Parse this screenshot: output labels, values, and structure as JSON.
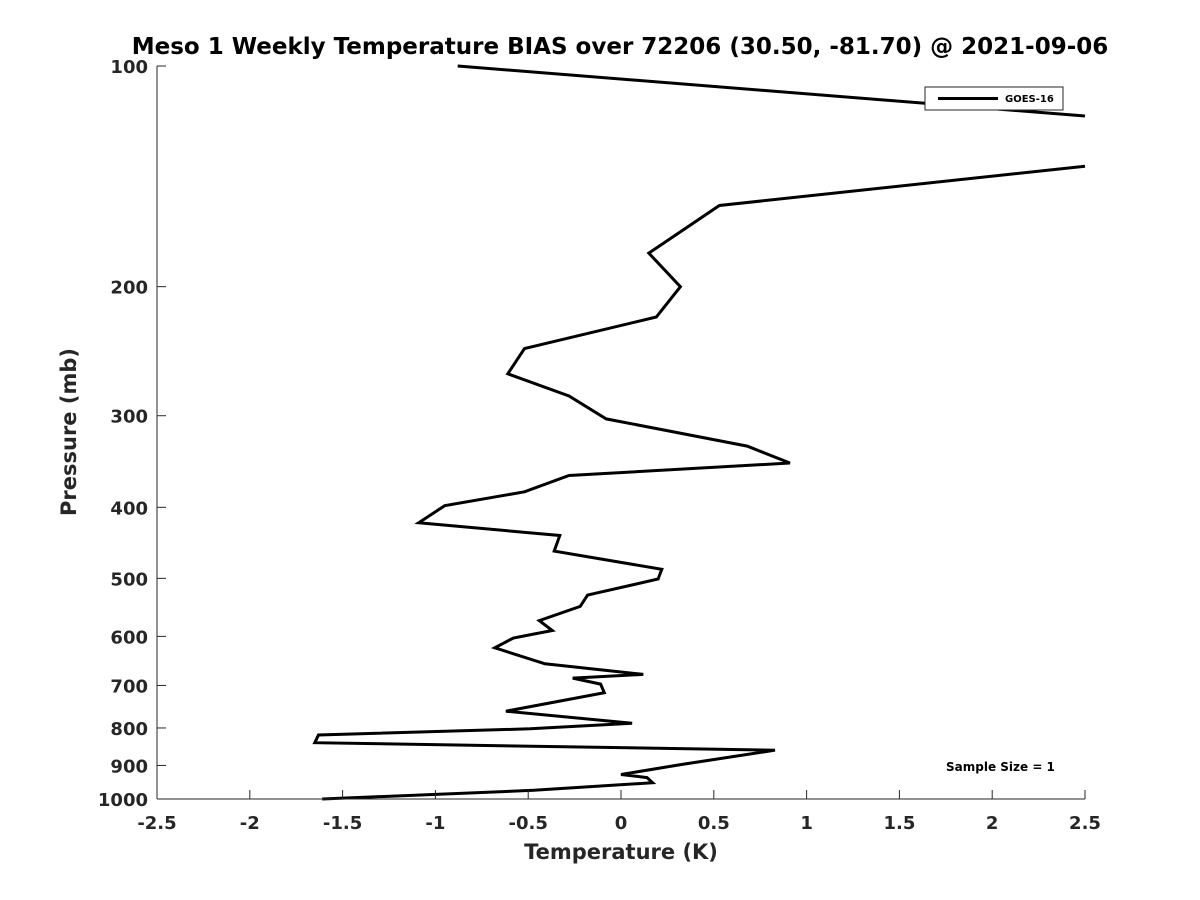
{
  "chart_data": {
    "type": "line",
    "title": "Meso 1 Weekly Temperature BIAS over 72206 (30.50, -81.70) @ 2021-09-06",
    "xlabel": "Temperature (K)",
    "ylabel": "Pressure (mb)",
    "xlim": [
      -2.5,
      2.5
    ],
    "ylim": [
      100,
      1000
    ],
    "yscale": "log",
    "y_reversed": true,
    "grid": false,
    "legend_position": "top-right",
    "x_ticks": [
      -2.5,
      -2,
      -1.5,
      -1,
      -0.5,
      0,
      0.5,
      1,
      1.5,
      2,
      2.5
    ],
    "x_tick_labels": [
      "-2.5",
      "-2",
      "-1.5",
      "-1",
      "-0.5",
      "0",
      "0.5",
      "1",
      "1.5",
      "2",
      "2.5"
    ],
    "y_ticks": [
      100,
      200,
      300,
      400,
      500,
      600,
      700,
      800,
      900,
      1000
    ],
    "y_tick_labels": [
      "100",
      "200",
      "300",
      "400",
      "500",
      "600",
      "700",
      "800",
      "900",
      "1000"
    ],
    "annotation": "Sample Size = 1",
    "series": [
      {
        "name": "GOES-16",
        "color": "#000000",
        "segments": [
          [
            [
              -0.88,
              100
            ],
            [
              2.5,
              117
            ]
          ],
          [
            [
              2.5,
              137
            ],
            [
              0.53,
              155
            ],
            [
              0.15,
              180
            ],
            [
              0.32,
              200
            ],
            [
              0.19,
              220
            ],
            [
              -0.52,
              243
            ],
            [
              -0.61,
              263
            ],
            [
              -0.28,
              282
            ],
            [
              -0.08,
              303
            ],
            [
              0.68,
              330
            ],
            [
              0.91,
              348
            ],
            [
              -0.28,
              362
            ],
            [
              -0.52,
              381
            ],
            [
              -0.95,
              398
            ],
            [
              -1.09,
              420
            ],
            [
              -0.33,
              437
            ],
            [
              -0.36,
              459
            ],
            [
              0.22,
              486
            ],
            [
              0.2,
              501
            ],
            [
              -0.18,
              527
            ],
            [
              -0.22,
              546
            ],
            [
              -0.44,
              571
            ],
            [
              -0.37,
              589
            ],
            [
              -0.58,
              603
            ],
            [
              -0.68,
              622
            ],
            [
              -0.41,
              654
            ],
            [
              0.12,
              676
            ],
            [
              -0.26,
              684
            ],
            [
              -0.11,
              697
            ],
            [
              -0.09,
              716
            ],
            [
              -0.62,
              759
            ],
            [
              0.06,
              788
            ],
            [
              -0.49,
              802
            ],
            [
              -1.63,
              818
            ],
            [
              -1.65,
              838
            ],
            [
              0.83,
              858
            ],
            [
              0.33,
              897
            ],
            [
              0.0,
              926
            ],
            [
              0.14,
              935
            ],
            [
              0.17,
              950
            ],
            [
              -0.47,
              973
            ],
            [
              -1.61,
              1000
            ]
          ]
        ]
      }
    ]
  }
}
